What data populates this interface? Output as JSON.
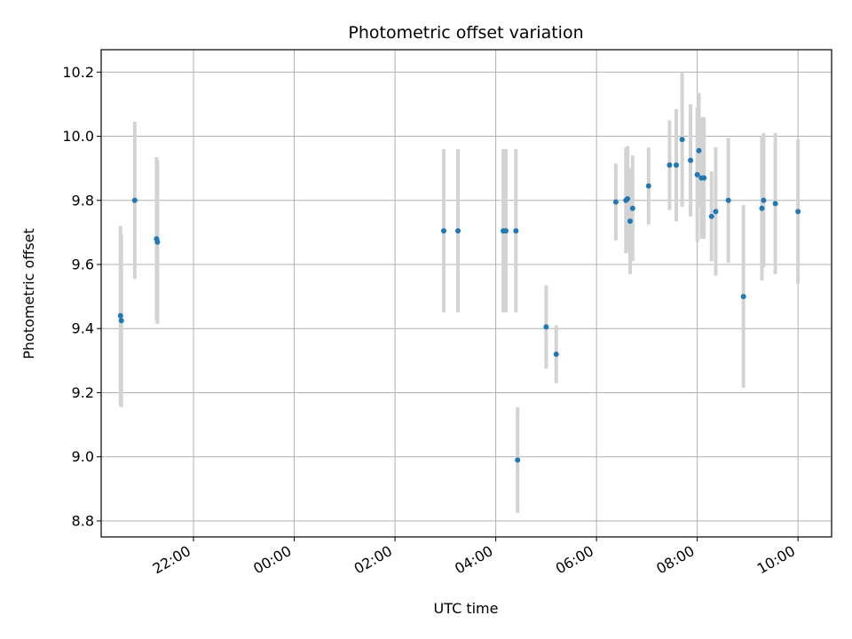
{
  "chart_data": {
    "type": "scatter",
    "title": "Photometric offset variation",
    "xlabel": "UTC time",
    "ylabel": "Photometric offset",
    "x_axis_type": "time",
    "xlim": [
      "2023-01-01T20:10",
      "2023-01-02T10:40"
    ],
    "ylim": [
      8.75,
      10.27
    ],
    "x_ticks": [
      {
        "time": "2023-01-01T22:00",
        "label": "22:00"
      },
      {
        "time": "2023-01-02T00:00",
        "label": "00:00"
      },
      {
        "time": "2023-01-02T02:00",
        "label": "02:00"
      },
      {
        "time": "2023-01-02T04:00",
        "label": "04:00"
      },
      {
        "time": "2023-01-02T06:00",
        "label": "06:00"
      },
      {
        "time": "2023-01-02T08:00",
        "label": "08:00"
      },
      {
        "time": "2023-01-02T10:00",
        "label": "10:00"
      }
    ],
    "y_ticks": [
      {
        "value": 8.8,
        "label": "8.8"
      },
      {
        "value": 9.0,
        "label": "9.0"
      },
      {
        "value": 9.2,
        "label": "9.2"
      },
      {
        "value": 9.4,
        "label": "9.4"
      },
      {
        "value": 9.6,
        "label": "9.6"
      },
      {
        "value": 9.8,
        "label": "9.8"
      },
      {
        "value": 10.0,
        "label": "10.0"
      },
      {
        "value": 10.2,
        "label": "10.2"
      }
    ],
    "grid": true,
    "marker_color": "#1f77b4",
    "errorbar_color": "#d3d3d3",
    "points": [
      {
        "t": "2023-01-01T20:33",
        "y": 9.44,
        "err": 0.28
      },
      {
        "t": "2023-01-01T20:34",
        "y": 9.425,
        "err": 0.27
      },
      {
        "t": "2023-01-01T20:50",
        "y": 9.8,
        "err": 0.245
      },
      {
        "t": "2023-01-01T21:16",
        "y": 9.68,
        "err": 0.255
      },
      {
        "t": "2023-01-01T21:17",
        "y": 9.67,
        "err": 0.255
      },
      {
        "t": "2023-01-02T02:58",
        "y": 9.705,
        "err": 0.255
      },
      {
        "t": "2023-01-02T03:15",
        "y": 9.705,
        "err": 0.255
      },
      {
        "t": "2023-01-02T04:09",
        "y": 9.705,
        "err": 0.255
      },
      {
        "t": "2023-01-02T04:12",
        "y": 9.705,
        "err": 0.255
      },
      {
        "t": "2023-01-02T04:24",
        "y": 9.705,
        "err": 0.255
      },
      {
        "t": "2023-01-02T04:26",
        "y": 8.99,
        "err": 0.165
      },
      {
        "t": "2023-01-02T05:00",
        "y": 9.405,
        "err": 0.13
      },
      {
        "t": "2023-01-02T05:12",
        "y": 9.32,
        "err": 0.09
      },
      {
        "t": "2023-01-02T06:23",
        "y": 9.795,
        "err": 0.12
      },
      {
        "t": "2023-01-02T06:35",
        "y": 9.8,
        "err": 0.165
      },
      {
        "t": "2023-01-02T06:37",
        "y": 9.805,
        "err": 0.165
      },
      {
        "t": "2023-01-02T06:40",
        "y": 9.735,
        "err": 0.165
      },
      {
        "t": "2023-01-02T06:43",
        "y": 9.775,
        "err": 0.165
      },
      {
        "t": "2023-01-02T07:02",
        "y": 9.845,
        "err": 0.12
      },
      {
        "t": "2023-01-02T07:27",
        "y": 9.91,
        "err": 0.14
      },
      {
        "t": "2023-01-02T07:35",
        "y": 9.91,
        "err": 0.175
      },
      {
        "t": "2023-01-02T07:42",
        "y": 9.99,
        "err": 0.21
      },
      {
        "t": "2023-01-02T07:52",
        "y": 9.925,
        "err": 0.175
      },
      {
        "t": "2023-01-02T08:00",
        "y": 9.88,
        "err": 0.21
      },
      {
        "t": "2023-01-02T08:02",
        "y": 9.955,
        "err": 0.18
      },
      {
        "t": "2023-01-02T08:05",
        "y": 9.87,
        "err": 0.19
      },
      {
        "t": "2023-01-02T08:08",
        "y": 9.87,
        "err": 0.19
      },
      {
        "t": "2023-01-02T08:17",
        "y": 9.75,
        "err": 0.14
      },
      {
        "t": "2023-01-02T08:22",
        "y": 9.765,
        "err": 0.2
      },
      {
        "t": "2023-01-02T08:37",
        "y": 9.8,
        "err": 0.195
      },
      {
        "t": "2023-01-02T08:55",
        "y": 9.5,
        "err": 0.285
      },
      {
        "t": "2023-01-02T09:17",
        "y": 9.775,
        "err": 0.225
      },
      {
        "t": "2023-01-02T09:19",
        "y": 9.8,
        "err": 0.21
      },
      {
        "t": "2023-01-02T09:33",
        "y": 9.79,
        "err": 0.22
      },
      {
        "t": "2023-01-02T10:00",
        "y": 9.765,
        "err": 0.225
      }
    ]
  }
}
